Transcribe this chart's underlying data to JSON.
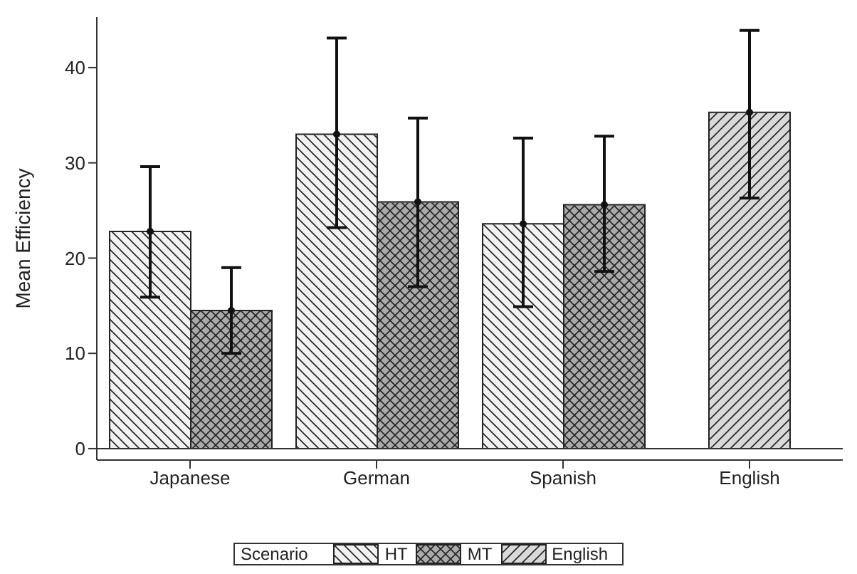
{
  "chart_data": {
    "type": "bar",
    "ylabel": "Mean Efficiency",
    "legend_title": "Scenario",
    "categories": [
      "Japanese",
      "German",
      "Spanish",
      "English"
    ],
    "series": [
      {
        "name": "HT",
        "color": "#f2f2f2",
        "values": [
          22.8,
          33.0,
          23.6,
          null
        ],
        "errors": [
          [
            15.9,
            29.6
          ],
          [
            23.2,
            43.1
          ],
          [
            14.9,
            32.6
          ],
          null
        ]
      },
      {
        "name": "MT",
        "color": "#aaaaaa",
        "values": [
          14.5,
          25.9,
          25.6,
          null
        ],
        "errors": [
          [
            10.0,
            19.0
          ],
          [
            17.0,
            34.7
          ],
          [
            18.6,
            32.8
          ],
          null
        ]
      },
      {
        "name": "English",
        "color": "#d9d9d9",
        "values": [
          null,
          null,
          null,
          35.3
        ],
        "errors": [
          null,
          null,
          null,
          [
            26.3,
            43.9
          ]
        ]
      }
    ],
    "ylim": [
      -1.2,
      45.3
    ],
    "yticks": [
      0,
      10,
      20,
      30,
      40
    ],
    "ref_lines": [
      {
        "axis": "y",
        "value": 0
      }
    ],
    "legend": "bottom",
    "grid": false
  }
}
